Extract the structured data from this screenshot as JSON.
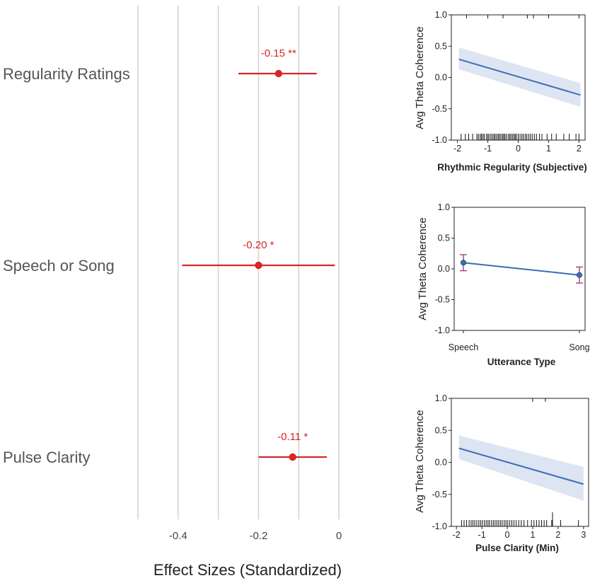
{
  "chart_data": [
    {
      "type": "forest",
      "xlabel": "Effect Sizes (Standardized)",
      "xlim": [
        -0.5,
        0
      ],
      "xticks": [
        -0.4,
        -0.2,
        0
      ],
      "xtick_labels": [
        "-0.4",
        "-0.2",
        "0"
      ],
      "gridlines": [
        -0.5,
        -0.4,
        -0.3,
        -0.2,
        -0.1,
        0
      ],
      "color": "#d62728",
      "rows": [
        {
          "label": "Regularity Ratings",
          "estimate": -0.15,
          "lower": -0.25,
          "upper": -0.055,
          "text": "-0.15 **"
        },
        {
          "label": "Speech or Song",
          "estimate": -0.2,
          "lower": -0.39,
          "upper": -0.01,
          "text": "-0.20 *"
        },
        {
          "label": "Pulse Clarity",
          "estimate": -0.115,
          "lower": -0.2,
          "upper": -0.03,
          "text": "-0.11 *"
        }
      ]
    },
    {
      "type": "line",
      "xlabel": "Rhythmic Regularity (Subjective)",
      "ylabel": "Avg Theta Coherence",
      "xlim": [
        -2.2,
        2.2
      ],
      "ylim": [
        -1.0,
        1.0
      ],
      "xticks": [
        -2,
        -1,
        0,
        1,
        2
      ],
      "xtick_labels": [
        "-2",
        "-1",
        "0",
        "1",
        "2"
      ],
      "yticks": [
        -1.0,
        -0.5,
        0.0,
        0.5,
        1.0
      ],
      "ytick_labels": [
        "-1.0",
        "-0.5",
        "0.0",
        "0.5",
        "1.0"
      ],
      "x": [
        -1.95,
        2.05
      ],
      "y": [
        0.29,
        -0.28
      ],
      "band_lower": [
        0.13,
        -0.47
      ],
      "band_upper": [
        0.48,
        -0.09
      ],
      "rug": [
        -1.88,
        -1.74,
        -1.63,
        -1.5,
        -1.36,
        -1.31,
        -1.25,
        -1.21,
        -1.16,
        -1.12,
        -1.05,
        -1.0,
        -0.96,
        -0.9,
        -0.85,
        -0.8,
        -0.76,
        -0.71,
        -0.66,
        -0.62,
        -0.57,
        -0.52,
        -0.48,
        -0.44,
        -0.39,
        -0.33,
        -0.28,
        -0.24,
        -0.19,
        -0.14,
        -0.1,
        -0.06,
        0.0,
        0.06,
        0.12,
        0.17,
        0.23,
        0.28,
        0.34,
        0.4,
        0.46,
        0.53,
        0.6,
        0.7,
        0.78,
        0.95,
        1.1,
        1.25,
        1.5,
        1.68,
        1.9,
        2.0
      ],
      "rug_top": [
        -1.7,
        -1.0,
        -0.5,
        0.3,
        0.5,
        1.0,
        2.0
      ]
    },
    {
      "type": "point",
      "xlabel": "Utterance Type",
      "ylabel": "Avg Theta Coherence",
      "categories": [
        "Speech",
        "Song"
      ],
      "ylim": [
        -1.0,
        1.0
      ],
      "yticks": [
        -1.0,
        -0.5,
        0.0,
        0.5,
        1.0
      ],
      "ytick_labels": [
        "-1.0",
        "-0.5",
        "0.0",
        "0.5",
        "1.0"
      ],
      "values": [
        0.1,
        -0.1
      ],
      "err_lower": [
        -0.03,
        -0.23
      ],
      "err_upper": [
        0.23,
        0.03
      ],
      "errorbar_color": "#a0407f"
    },
    {
      "type": "line",
      "xlabel": "Pulse Clarity (Min)",
      "ylabel": "Avg Theta Coherence",
      "xlim": [
        -2.2,
        3.2
      ],
      "ylim": [
        -1.0,
        1.0
      ],
      "xticks": [
        -2,
        -1,
        0,
        1,
        2,
        3
      ],
      "xtick_labels": [
        "-2",
        "-1",
        "0",
        "1",
        "2",
        "3"
      ],
      "yticks": [
        -1.0,
        -0.5,
        0.0,
        0.5,
        1.0
      ],
      "ytick_labels": [
        "-1.0",
        "-0.5",
        "0.0",
        "0.5",
        "1.0"
      ],
      "x": [
        -1.9,
        3.0
      ],
      "y": [
        0.22,
        -0.34
      ],
      "band_lower": [
        0.05,
        -0.6
      ],
      "band_upper": [
        0.42,
        -0.07
      ],
      "rug": [
        -1.8,
        -1.7,
        -1.6,
        -1.5,
        -1.42,
        -1.35,
        -1.28,
        -1.2,
        -1.12,
        -1.05,
        -0.98,
        -0.9,
        -0.83,
        -0.76,
        -0.7,
        -0.62,
        -0.55,
        -0.48,
        -0.41,
        -0.34,
        -0.27,
        -0.2,
        -0.12,
        -0.05,
        0.02,
        0.1,
        0.18,
        0.26,
        0.35,
        0.45,
        0.55,
        0.66,
        0.8,
        0.95,
        1.05,
        1.15,
        1.25,
        1.35,
        1.45,
        1.55,
        1.75,
        2.1,
        2.8
      ],
      "rug_tall": [
        1.78
      ],
      "rug_top": [
        1.0,
        1.5
      ]
    }
  ]
}
